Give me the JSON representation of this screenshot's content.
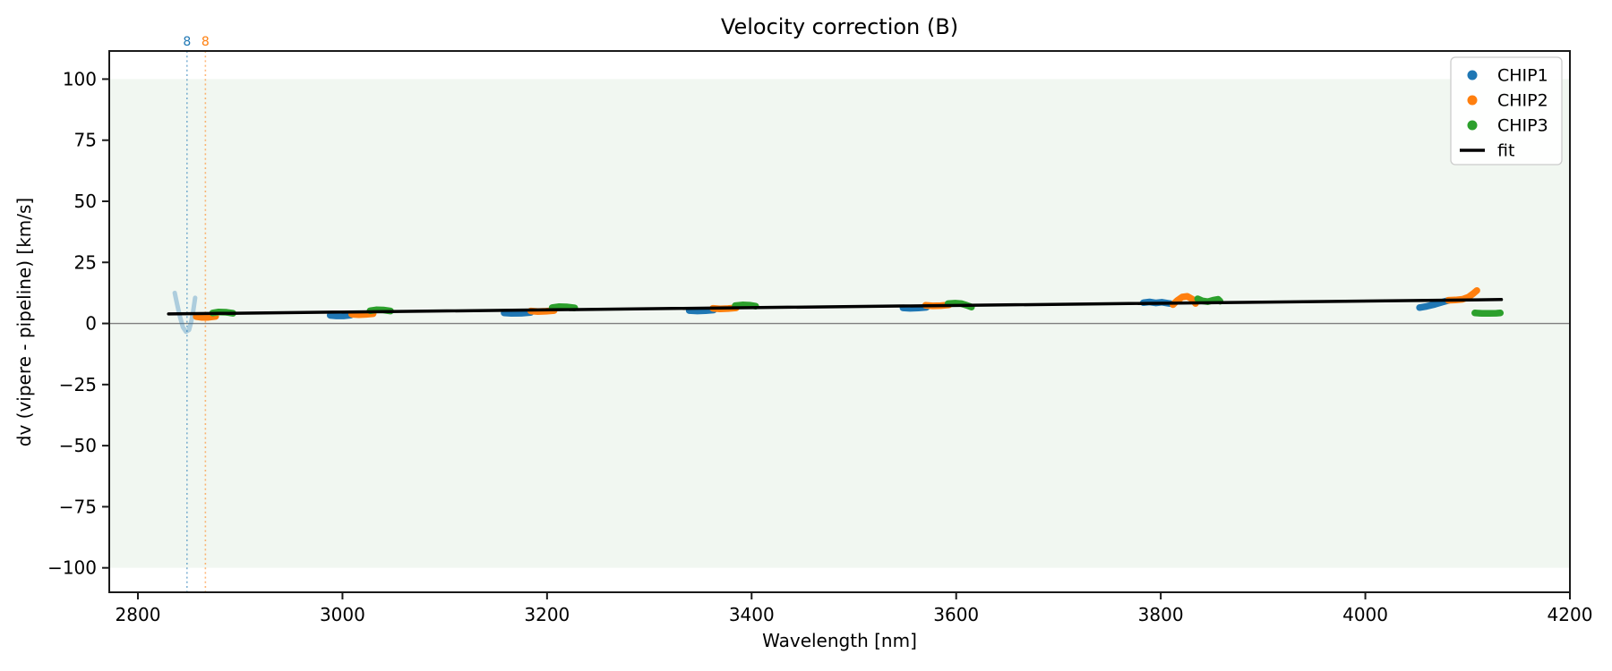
{
  "chart_data": {
    "type": "scatter",
    "title": "Velocity correction (B)",
    "xlabel": "Wavelength [nm]",
    "ylabel": "dv (vipere - pipeline) [km/s]",
    "xlim": [
      2772,
      4200
    ],
    "ylim": [
      -110,
      111.5
    ],
    "xticks": [
      2800,
      3000,
      3200,
      3400,
      3600,
      3800,
      4000,
      4200
    ],
    "xtick_labels": [
      "2800",
      "3000",
      "3200",
      "3400",
      "3600",
      "3800",
      "4000",
      "4200"
    ],
    "yticks": [
      100,
      75,
      50,
      25,
      0,
      -25,
      -50,
      -75,
      -100
    ],
    "ytick_labels": [
      "100",
      "75",
      "50",
      "25",
      "0",
      "−25",
      "−50",
      "−75",
      "−100"
    ],
    "grid": false,
    "band": {
      "from": -100,
      "to": 100,
      "color": "#f1f7f1"
    },
    "zero_line": {
      "y": 0,
      "color": "#7f7f7f"
    },
    "order_markers": [
      {
        "label": "8",
        "x": 2848,
        "color": "#1f77b4"
      },
      {
        "label": "8",
        "x": 2866,
        "color": "#ff7f0e"
      }
    ],
    "series": [
      {
        "name": "CHIP1",
        "color": "#1f77b4",
        "segments": [
          {
            "alpha": 0.32,
            "width": 5,
            "points": [
              [
                2836,
                12.5
              ],
              [
                2838,
                8.5
              ],
              [
                2841,
                3.0
              ],
              [
                2844,
                -1.5
              ],
              [
                2847,
                -3.4
              ],
              [
                2850,
                -2.6
              ],
              [
                2852,
                0.5
              ],
              [
                2854,
                5.0
              ],
              [
                2856,
                10.5
              ]
            ]
          },
          {
            "points": [
              [
                2988,
                3.3
              ],
              [
                2994,
                3.1
              ],
              [
                3001,
                3.1
              ],
              [
                3008,
                3.4
              ]
            ]
          },
          {
            "points": [
              [
                3158,
                4.3
              ],
              [
                3165,
                4.1
              ],
              [
                3175,
                4.2
              ],
              [
                3184,
                4.5
              ]
            ]
          },
          {
            "points": [
              [
                3339,
                5.3
              ],
              [
                3347,
                5.1
              ],
              [
                3355,
                5.2
              ],
              [
                3363,
                5.5
              ]
            ]
          },
          {
            "points": [
              [
                3548,
                6.4
              ],
              [
                3555,
                6.2
              ],
              [
                3563,
                6.3
              ],
              [
                3571,
                6.6
              ]
            ]
          },
          {
            "points": [
              [
                3783,
                8.5
              ],
              [
                3789,
                8.8
              ],
              [
                3795,
                8.4
              ],
              [
                3801,
                8.7
              ],
              [
                3807,
                8.3
              ],
              [
                3810,
                8.1
              ]
            ]
          },
          {
            "points": [
              [
                4053,
                6.5
              ],
              [
                4060,
                7.0
              ],
              [
                4068,
                7.8
              ],
              [
                4075,
                8.7
              ],
              [
                4081,
                9.4
              ]
            ]
          }
        ]
      },
      {
        "name": "CHIP2",
        "color": "#ff7f0e",
        "segments": [
          {
            "points": [
              [
                2857,
                2.8
              ],
              [
                2862,
                2.5
              ],
              [
                2869,
                2.5
              ],
              [
                2876,
                2.9
              ]
            ]
          },
          {
            "points": [
              [
                3009,
                3.8
              ],
              [
                3016,
                3.6
              ],
              [
                3023,
                3.7
              ],
              [
                3030,
                4.0
              ]
            ]
          },
          {
            "points": [
              [
                3184,
                5.1
              ],
              [
                3191,
                4.9
              ],
              [
                3199,
                5.0
              ],
              [
                3207,
                5.3
              ]
            ]
          },
          {
            "points": [
              [
                3362,
                6.2
              ],
              [
                3369,
                6.0
              ],
              [
                3377,
                6.1
              ],
              [
                3385,
                6.4
              ]
            ]
          },
          {
            "points": [
              [
                3570,
                7.4
              ],
              [
                3577,
                7.2
              ],
              [
                3585,
                7.3
              ],
              [
                3593,
                7.6
              ]
            ]
          },
          {
            "points": [
              [
                3812,
                7.7
              ],
              [
                3816,
                9.3
              ],
              [
                3821,
                10.8
              ],
              [
                3826,
                11.1
              ],
              [
                3831,
                9.9
              ],
              [
                3834,
                8.2
              ]
            ]
          },
          {
            "points": [
              [
                4081,
                9.5
              ],
              [
                4088,
                9.6
              ],
              [
                4095,
                9.9
              ],
              [
                4101,
                10.8
              ],
              [
                4106,
                12.4
              ],
              [
                4109,
                13.5
              ]
            ]
          }
        ]
      },
      {
        "name": "CHIP3",
        "color": "#2ca02c",
        "segments": [
          {
            "points": [
              [
                2873,
                4.3
              ],
              [
                2879,
                4.7
              ],
              [
                2886,
                4.6
              ],
              [
                2893,
                4.2
              ]
            ]
          },
          {
            "points": [
              [
                3027,
                5.2
              ],
              [
                3033,
                5.6
              ],
              [
                3040,
                5.5
              ],
              [
                3047,
                5.1
              ]
            ]
          },
          {
            "points": [
              [
                3205,
                6.5
              ],
              [
                3212,
                6.9
              ],
              [
                3219,
                6.8
              ],
              [
                3227,
                6.4
              ]
            ]
          },
          {
            "points": [
              [
                3384,
                7.3
              ],
              [
                3391,
                7.6
              ],
              [
                3398,
                7.5
              ],
              [
                3404,
                7.1
              ]
            ]
          },
          {
            "points": [
              [
                3592,
                8.1
              ],
              [
                3599,
                8.3
              ],
              [
                3605,
                8.1
              ],
              [
                3610,
                7.5
              ],
              [
                3615,
                6.7
              ]
            ]
          },
          {
            "points": [
              [
                3836,
                10.1
              ],
              [
                3841,
                9.2
              ],
              [
                3846,
                8.9
              ],
              [
                3851,
                9.5
              ],
              [
                3856,
                9.9
              ],
              [
                3858,
                9.1
              ]
            ]
          },
          {
            "points": [
              [
                4107,
                4.3
              ],
              [
                4114,
                4.1
              ],
              [
                4121,
                4.1
              ],
              [
                4128,
                4.2
              ],
              [
                4132,
                4.3
              ]
            ]
          }
        ]
      }
    ],
    "fit": {
      "label": "fit",
      "color": "#000000",
      "width": 3.5,
      "points": [
        [
          2830,
          3.9
        ],
        [
          4133,
          9.8
        ]
      ]
    },
    "legend": {
      "position": "upper right",
      "entries": [
        {
          "label": "CHIP1",
          "color": "#1f77b4",
          "marker": "dot"
        },
        {
          "label": "CHIP2",
          "color": "#ff7f0e",
          "marker": "dot"
        },
        {
          "label": "CHIP3",
          "color": "#2ca02c",
          "marker": "dot"
        },
        {
          "label": "fit",
          "color": "#000000",
          "marker": "line"
        }
      ]
    }
  }
}
